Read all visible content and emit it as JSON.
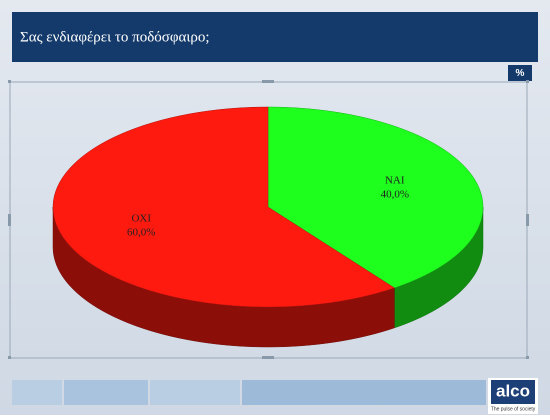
{
  "chart_data": {
    "type": "pie",
    "title": "Σας ενδιαφέρει το ποδόσφαιρο;",
    "categories": [
      "ΝΑΙ",
      "ΟΧΙ"
    ],
    "values": [
      40,
      60
    ],
    "value_labels": [
      "40,0%",
      "60,0%"
    ],
    "colors": [
      "#1eff1e",
      "#ff1a10"
    ]
  },
  "badge": "%",
  "logo": {
    "name": "alco",
    "tagline": "The pulse of society"
  }
}
